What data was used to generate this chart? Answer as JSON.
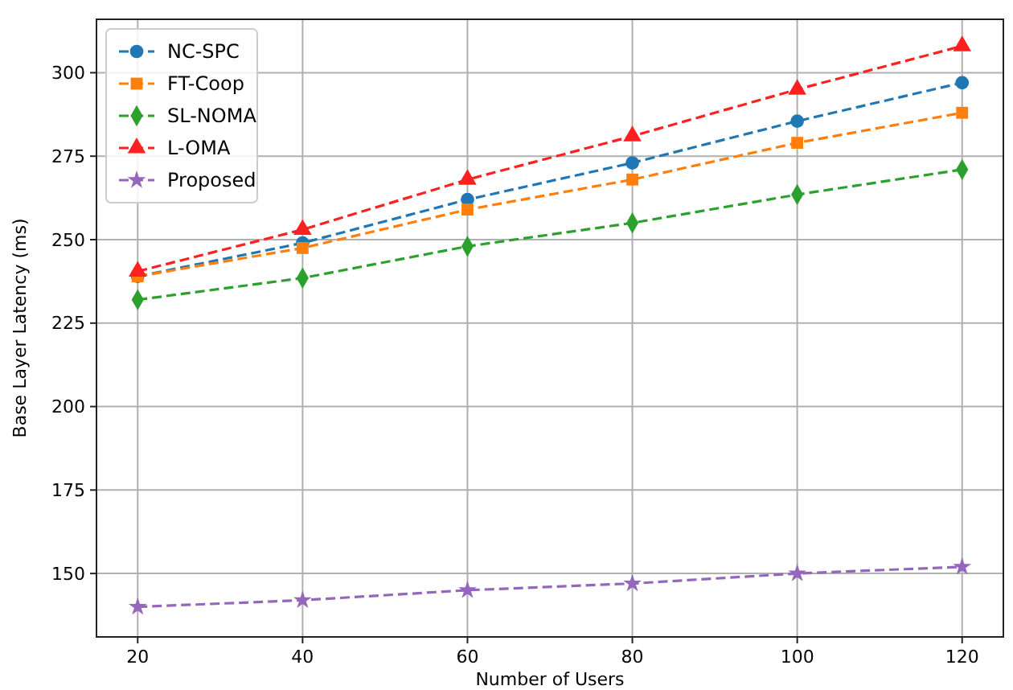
{
  "chart_data": {
    "type": "line",
    "xlabel": "Number of Users",
    "ylabel": "Base Layer Latency (ms)",
    "x": [
      20,
      40,
      60,
      80,
      100,
      120
    ],
    "series": [
      {
        "name": "NC-SPC",
        "color": "#1f77b4",
        "marker": "circle",
        "values": [
          239,
          249,
          262,
          273,
          285.5,
          297
        ]
      },
      {
        "name": "FT-Coop",
        "color": "#ff7f0e",
        "marker": "square",
        "values": [
          239,
          247.5,
          259,
          268,
          279,
          288
        ]
      },
      {
        "name": "SL-NOMA",
        "color": "#2ca02c",
        "marker": "diamond",
        "values": [
          232,
          238.5,
          248,
          255,
          263.5,
          271
        ]
      },
      {
        "name": "L-OMA",
        "color": "#ff2020",
        "marker": "triangle",
        "values": [
          240.5,
          253,
          268,
          281,
          295,
          308
        ]
      },
      {
        "name": "Proposed",
        "color": "#9467bd",
        "marker": "star",
        "values": [
          140,
          142,
          145,
          147,
          150,
          152
        ]
      }
    ],
    "xlim": [
      15,
      125
    ],
    "xticks": [
      20,
      40,
      60,
      80,
      100,
      120
    ],
    "ylim": [
      131,
      316
    ],
    "yticks": [
      150,
      175,
      200,
      225,
      250,
      275,
      300
    ],
    "grid": true,
    "legend": "top left",
    "line_style": "dashed"
  }
}
